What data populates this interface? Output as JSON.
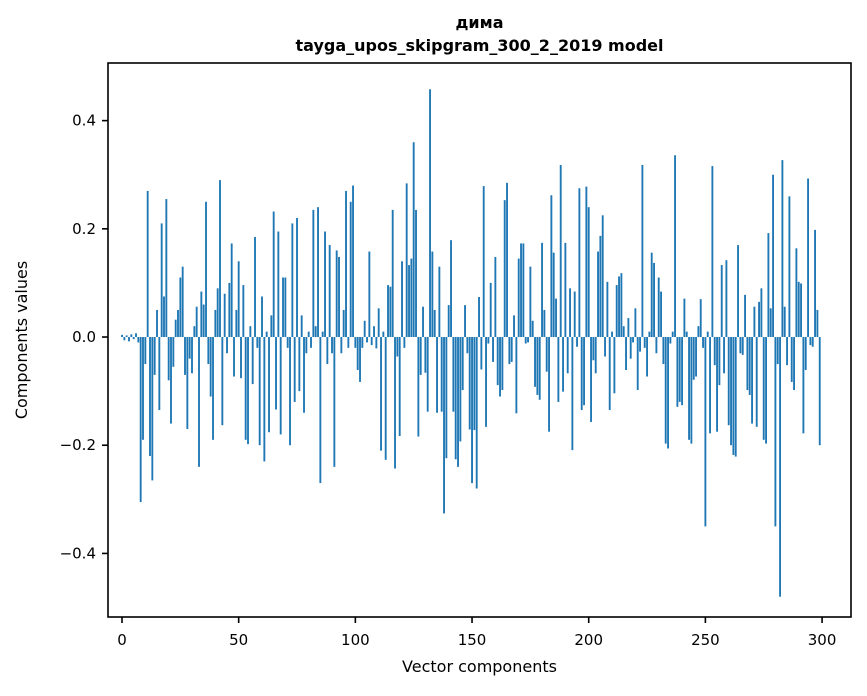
{
  "figure": {
    "background": "#ffffff"
  },
  "chart_data": {
    "type": "bar",
    "title": "дима",
    "subtitle": "tayga_upos_skipgram_300_2_2019 model",
    "xlabel": "Vector components",
    "ylabel": "Components values",
    "bar_color": "#1f77b4",
    "axis_color": "#000000",
    "grid": false,
    "legend": null,
    "n_components": 300,
    "x_tick_values": [
      0,
      50,
      100,
      150,
      200,
      250,
      300
    ],
    "x_tick_labels": [
      "0",
      "50",
      "100",
      "150",
      "200",
      "250",
      "300"
    ],
    "y_tick_values": [
      0.4,
      0.2,
      0.0,
      -0.2,
      -0.4
    ],
    "y_tick_labels": [
      "0.4",
      "0.2",
      "0.0",
      "−0.2",
      "−0.4"
    ],
    "xlim": [
      -6,
      312.4
    ],
    "ylim": [
      -0.5175,
      0.5065
    ],
    "values": [
      0.004,
      -0.006,
      0.003,
      -0.008,
      0.005,
      -0.004,
      0.007,
      -0.01,
      -0.305,
      -0.19,
      -0.05,
      0.27,
      -0.22,
      -0.265,
      -0.07,
      0.05,
      -0.135,
      0.21,
      0.075,
      0.255,
      -0.08,
      -0.16,
      -0.055,
      0.032,
      0.05,
      0.11,
      0.13,
      -0.07,
      -0.17,
      -0.04,
      -0.067,
      0.02,
      0.056,
      -0.24,
      0.084,
      0.06,
      0.25,
      -0.05,
      -0.11,
      -0.19,
      0.05,
      0.09,
      0.29,
      -0.163,
      0.08,
      -0.03,
      0.1,
      0.173,
      -0.073,
      0.05,
      0.14,
      -0.076,
      0.096,
      -0.19,
      -0.198,
      0.02,
      -0.087,
      0.185,
      -0.02,
      -0.2,
      0.075,
      -0.23,
      0.01,
      -0.176,
      0.04,
      0.232,
      -0.134,
      0.195,
      -0.18,
      0.11,
      0.11,
      -0.02,
      -0.2,
      0.21,
      -0.12,
      0.22,
      -0.1,
      0.04,
      -0.14,
      -0.03,
      0.01,
      -0.02,
      0.235,
      0.02,
      0.24,
      -0.27,
      0.01,
      0.195,
      -0.05,
      0.17,
      -0.03,
      -0.24,
      0.16,
      0.148,
      -0.03,
      0.05,
      0.27,
      -0.02,
      0.25,
      0.28,
      -0.02,
      -0.061,
      -0.083,
      -0.02,
      0.03,
      -0.01,
      0.158,
      -0.015,
      0.02,
      -0.021,
      0.053,
      -0.21,
      0.01,
      -0.227,
      0.096,
      0.093,
      0.235,
      -0.243,
      -0.036,
      -0.183,
      0.14,
      -0.02,
      0.284,
      0.133,
      0.145,
      0.36,
      0.235,
      -0.184,
      -0.07,
      0.056,
      -0.066,
      -0.138,
      0.458,
      0.158,
      0.05,
      -0.14,
      0.13,
      -0.138,
      -0.326,
      -0.224,
      0.059,
      0.179,
      -0.138,
      -0.226,
      -0.24,
      -0.193,
      -0.098,
      0.059,
      -0.03,
      -0.171,
      -0.27,
      -0.172,
      -0.28,
      0.074,
      -0.06,
      0.279,
      -0.166,
      -0.012,
      0.1,
      -0.046,
      0.148,
      -0.089,
      -0.11,
      -0.098,
      0.253,
      0.285,
      -0.05,
      -0.046,
      0.04,
      -0.141,
      0.145,
      0.173,
      0.173,
      -0.012,
      -0.01,
      0.13,
      0.03,
      -0.092,
      -0.107,
      -0.116,
      0.174,
      0.05,
      -0.064,
      -0.175,
      0.262,
      0.156,
      0.071,
      -0.12,
      0.318,
      -0.101,
      0.174,
      -0.067,
      0.09,
      -0.209,
      0.084,
      -0.018,
      0.275,
      -0.135,
      -0.126,
      0.278,
      0.24,
      -0.157,
      -0.043,
      -0.067,
      0.158,
      0.187,
      0.225,
      -0.036,
      0.102,
      -0.135,
      0.01,
      -0.104,
      0.096,
      0.112,
      0.118,
      0.02,
      -0.061,
      0.035,
      -0.04,
      -0.01,
      0.053,
      -0.098,
      -0.027,
      0.318,
      -0.02,
      -0.073,
      0.01,
      0.156,
      0.137,
      -0.03,
      0.11,
      0.084,
      -0.05,
      -0.197,
      -0.206,
      -0.012,
      0.01,
      0.336,
      -0.129,
      -0.12,
      -0.126,
      0.071,
      0.01,
      -0.19,
      -0.197,
      -0.079,
      -0.073,
      0.02,
      0.07,
      -0.02,
      -0.35,
      0.01,
      -0.178,
      0.316,
      -0.052,
      -0.175,
      -0.089,
      0.133,
      -0.067,
      0.142,
      -0.163,
      -0.2,
      -0.218,
      -0.221,
      0.17,
      -0.03,
      -0.033,
      0.078,
      -0.098,
      -0.107,
      -0.16,
      0.056,
      -0.166,
      0.065,
      0.09,
      -0.19,
      -0.197,
      0.192,
      0.053,
      0.3,
      -0.35,
      -0.05,
      -0.48,
      0.327,
      0.056,
      -0.052,
      0.26,
      -0.083,
      -0.098,
      0.164,
      0.102,
      0.099,
      -0.178,
      -0.061,
      0.293,
      -0.015,
      -0.018,
      0.198,
      0.05,
      -0.2
    ]
  }
}
